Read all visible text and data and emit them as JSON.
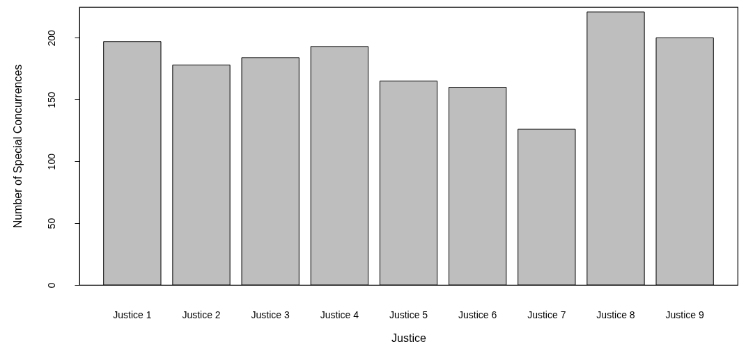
{
  "chart_data": {
    "type": "bar",
    "xlabel": "Justice",
    "ylabel": "Number of Special Concurrences",
    "categories": [
      "Justice 1",
      "Justice 2",
      "Justice 3",
      "Justice 4",
      "Justice 5",
      "Justice 6",
      "Justice 7",
      "Justice 8",
      "Justice 9"
    ],
    "values": [
      197,
      178,
      184,
      193,
      165,
      160,
      126,
      221,
      200
    ],
    "color": "#bebebe",
    "ylim": [
      0,
      225
    ],
    "yticks": [
      0,
      50,
      100,
      150,
      200
    ],
    "grid": false
  }
}
